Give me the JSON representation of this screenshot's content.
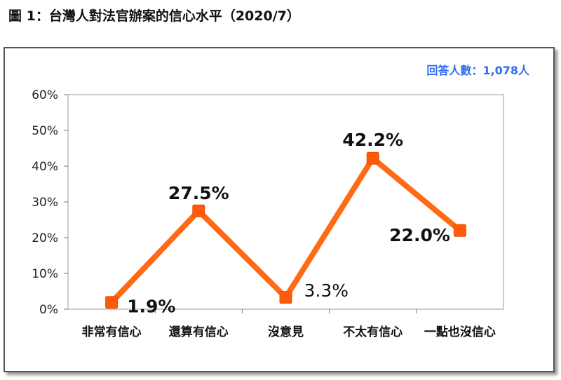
{
  "figure_title": "圖 1：台灣人對法官辦案的信心水平（2020/7）",
  "sample_note": "回答人數：1,078人",
  "colors": {
    "line": "#ff6a14",
    "marker": "#ff5a0a",
    "note": "#2f6df0"
  },
  "chart_data": {
    "type": "line",
    "categories": [
      "非常有信心",
      "還算有信心",
      "沒意見",
      "不太有信心",
      "一點也沒信心"
    ],
    "values": [
      1.9,
      27.5,
      3.3,
      42.2,
      22.0
    ],
    "data_labels": [
      "1.9%",
      "27.5%",
      "3.3%",
      "42.2%",
      "22.0%"
    ],
    "ylim": [
      0,
      60
    ],
    "yticks": [
      0,
      10,
      20,
      30,
      40,
      50,
      60
    ],
    "ytick_labels": [
      "0%",
      "10%",
      "20%",
      "30%",
      "40%",
      "50%",
      "60%"
    ],
    "grid": false,
    "marker": "square"
  }
}
